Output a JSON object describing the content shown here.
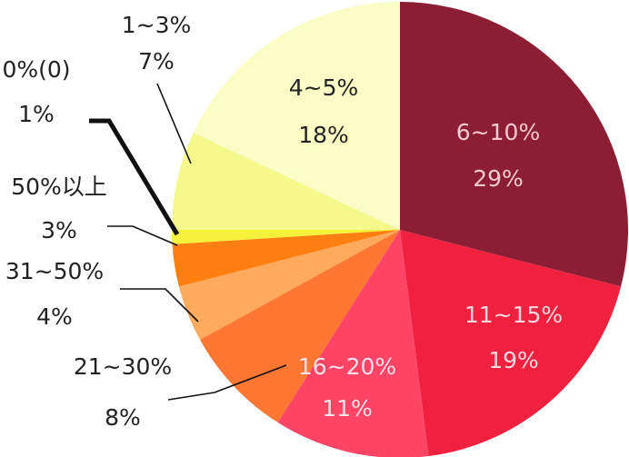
{
  "chart_data": {
    "type": "pie",
    "title": "",
    "start": "top",
    "direction": "clockwise",
    "slices": [
      {
        "label": "6~10%",
        "value": 29,
        "value_label": "29%",
        "color": "#8B1E33",
        "text_color": "#f4c9cf"
      },
      {
        "label": "11~15%",
        "value": 19,
        "value_label": "19%",
        "color": "#F0213F",
        "text_color": "#fbd7dc"
      },
      {
        "label": "16~20%",
        "value": 11,
        "value_label": "11%",
        "color": "#FF4466",
        "text_color": "#fbe0e5"
      },
      {
        "label": "21~30%",
        "value": 8,
        "value_label": "8%",
        "color": "#FF7733",
        "text_color": "#222222"
      },
      {
        "label": "31~50%",
        "value": 4,
        "value_label": "4%",
        "color": "#FFAA5C",
        "text_color": "#222222"
      },
      {
        "label": "50%以上",
        "value": 3,
        "value_label": "3%",
        "color": "#FF7F11",
        "text_color": "#222222"
      },
      {
        "label": "0%(0)",
        "value": 1,
        "value_label": "1%",
        "color": "#F4F23A",
        "text_color": "#222222"
      },
      {
        "label": "1~3%",
        "value": 7,
        "value_label": "7%",
        "color": "#F5F88A",
        "text_color": "#222222"
      },
      {
        "label": "4~5%",
        "value": 18,
        "value_label": "18%",
        "color": "#FAFDC6",
        "text_color": "#222222"
      }
    ]
  }
}
